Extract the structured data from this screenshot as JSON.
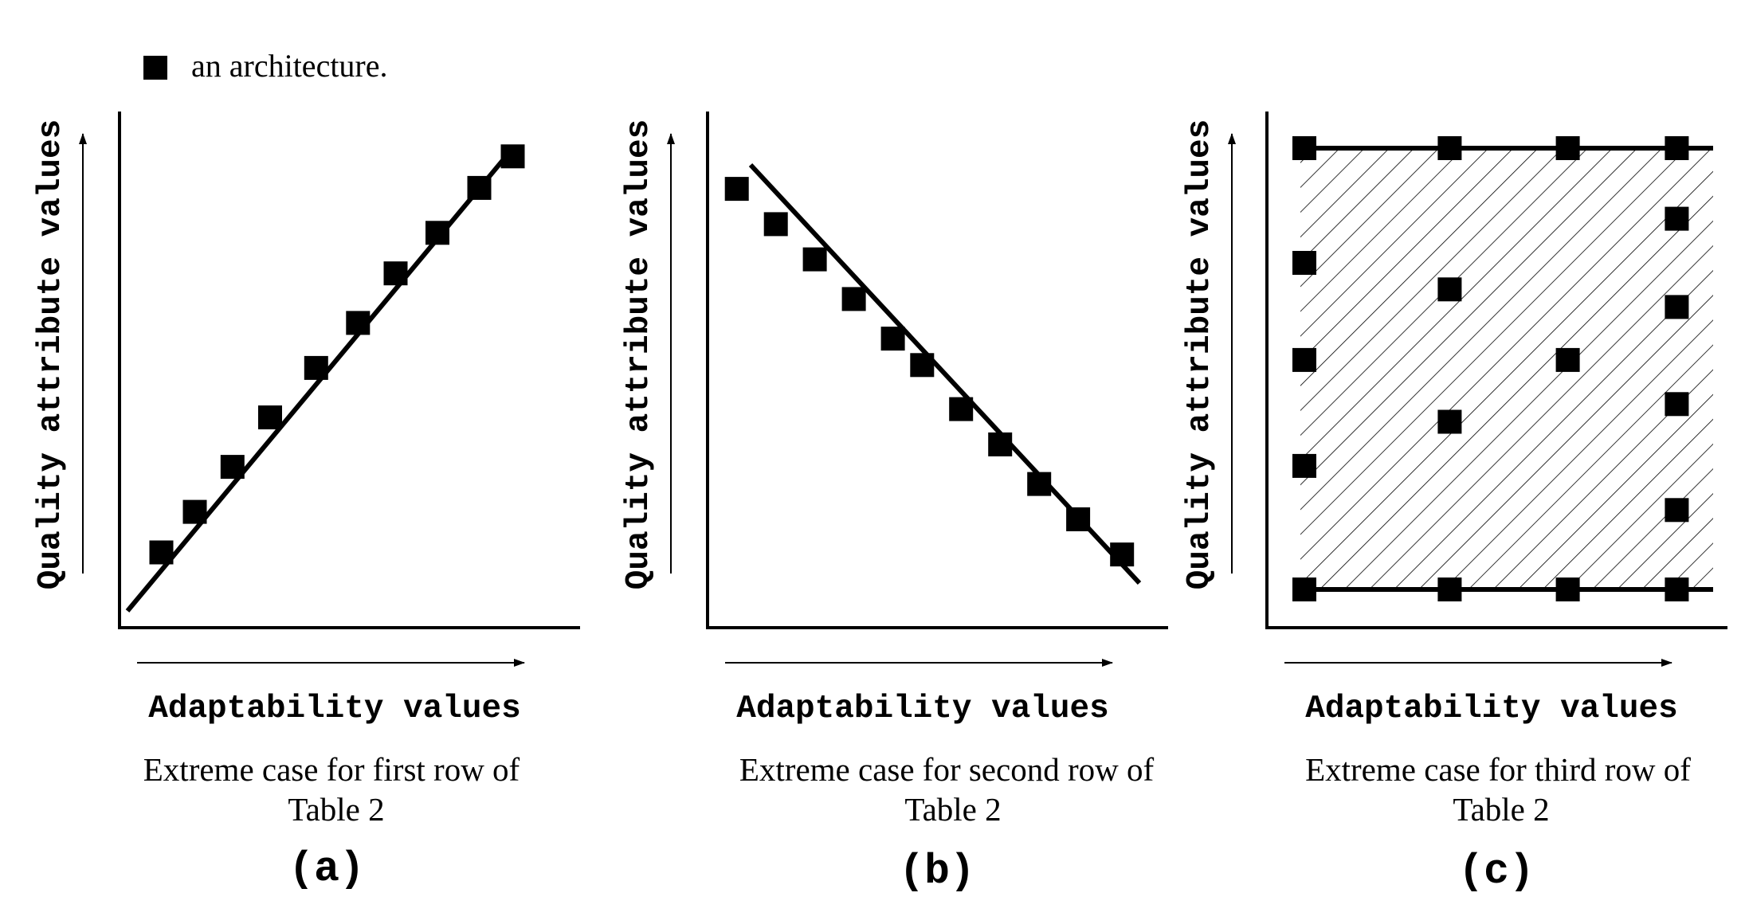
{
  "legend": {
    "marker": "filled-square",
    "label": "an architecture."
  },
  "colors": {
    "ink": "#000000",
    "background": "#ffffff"
  },
  "panels": [
    {
      "id": "a",
      "tag": "(a)",
      "x_axis_title": "Adaptability values",
      "y_axis_title": "Quality attribute values",
      "caption_line1": "Extreme case for first row of",
      "caption_line2": "Table 2",
      "pattern": "increasing line",
      "points": [
        [
          0.1,
          0.1
        ],
        [
          0.18,
          0.19
        ],
        [
          0.27,
          0.29
        ],
        [
          0.36,
          0.4
        ],
        [
          0.47,
          0.51
        ],
        [
          0.57,
          0.61
        ],
        [
          0.66,
          0.72
        ],
        [
          0.76,
          0.81
        ],
        [
          0.86,
          0.91
        ],
        [
          0.94,
          0.98
        ]
      ]
    },
    {
      "id": "b",
      "tag": "(b)",
      "x_axis_title": "Adaptability values",
      "y_axis_title": "Quality attribute values",
      "caption_line1": "Extreme case for second row of",
      "caption_line2": "Table 2",
      "pattern": "decreasing line",
      "points": [
        [
          0.06,
          0.96
        ],
        [
          0.14,
          0.88
        ],
        [
          0.22,
          0.8
        ],
        [
          0.3,
          0.71
        ],
        [
          0.38,
          0.62
        ],
        [
          0.44,
          0.56
        ],
        [
          0.52,
          0.46
        ],
        [
          0.6,
          0.38
        ],
        [
          0.68,
          0.29
        ],
        [
          0.76,
          0.21
        ],
        [
          0.85,
          0.13
        ]
      ]
    },
    {
      "id": "c",
      "tag": "(c)",
      "x_axis_title": "Adaptability values",
      "y_axis_title": "Quality attribute values",
      "caption_line1": "Extreme case for third row of",
      "caption_line2": "Table 2",
      "pattern": "hatched region between upper and lower bounds",
      "points": [
        [
          0.1,
          1.0
        ],
        [
          0.42,
          1.0
        ],
        [
          0.68,
          1.0
        ],
        [
          0.92,
          1.0
        ],
        [
          0.92,
          0.84
        ],
        [
          0.1,
          0.74
        ],
        [
          0.42,
          0.68
        ],
        [
          0.92,
          0.64
        ],
        [
          0.1,
          0.52
        ],
        [
          0.68,
          0.52
        ],
        [
          0.92,
          0.42
        ],
        [
          0.42,
          0.38
        ],
        [
          0.1,
          0.28
        ],
        [
          0.92,
          0.18
        ],
        [
          0.1,
          0.0
        ],
        [
          0.42,
          0.0
        ],
        [
          0.68,
          0.0
        ],
        [
          0.92,
          0.0
        ]
      ]
    }
  ]
}
